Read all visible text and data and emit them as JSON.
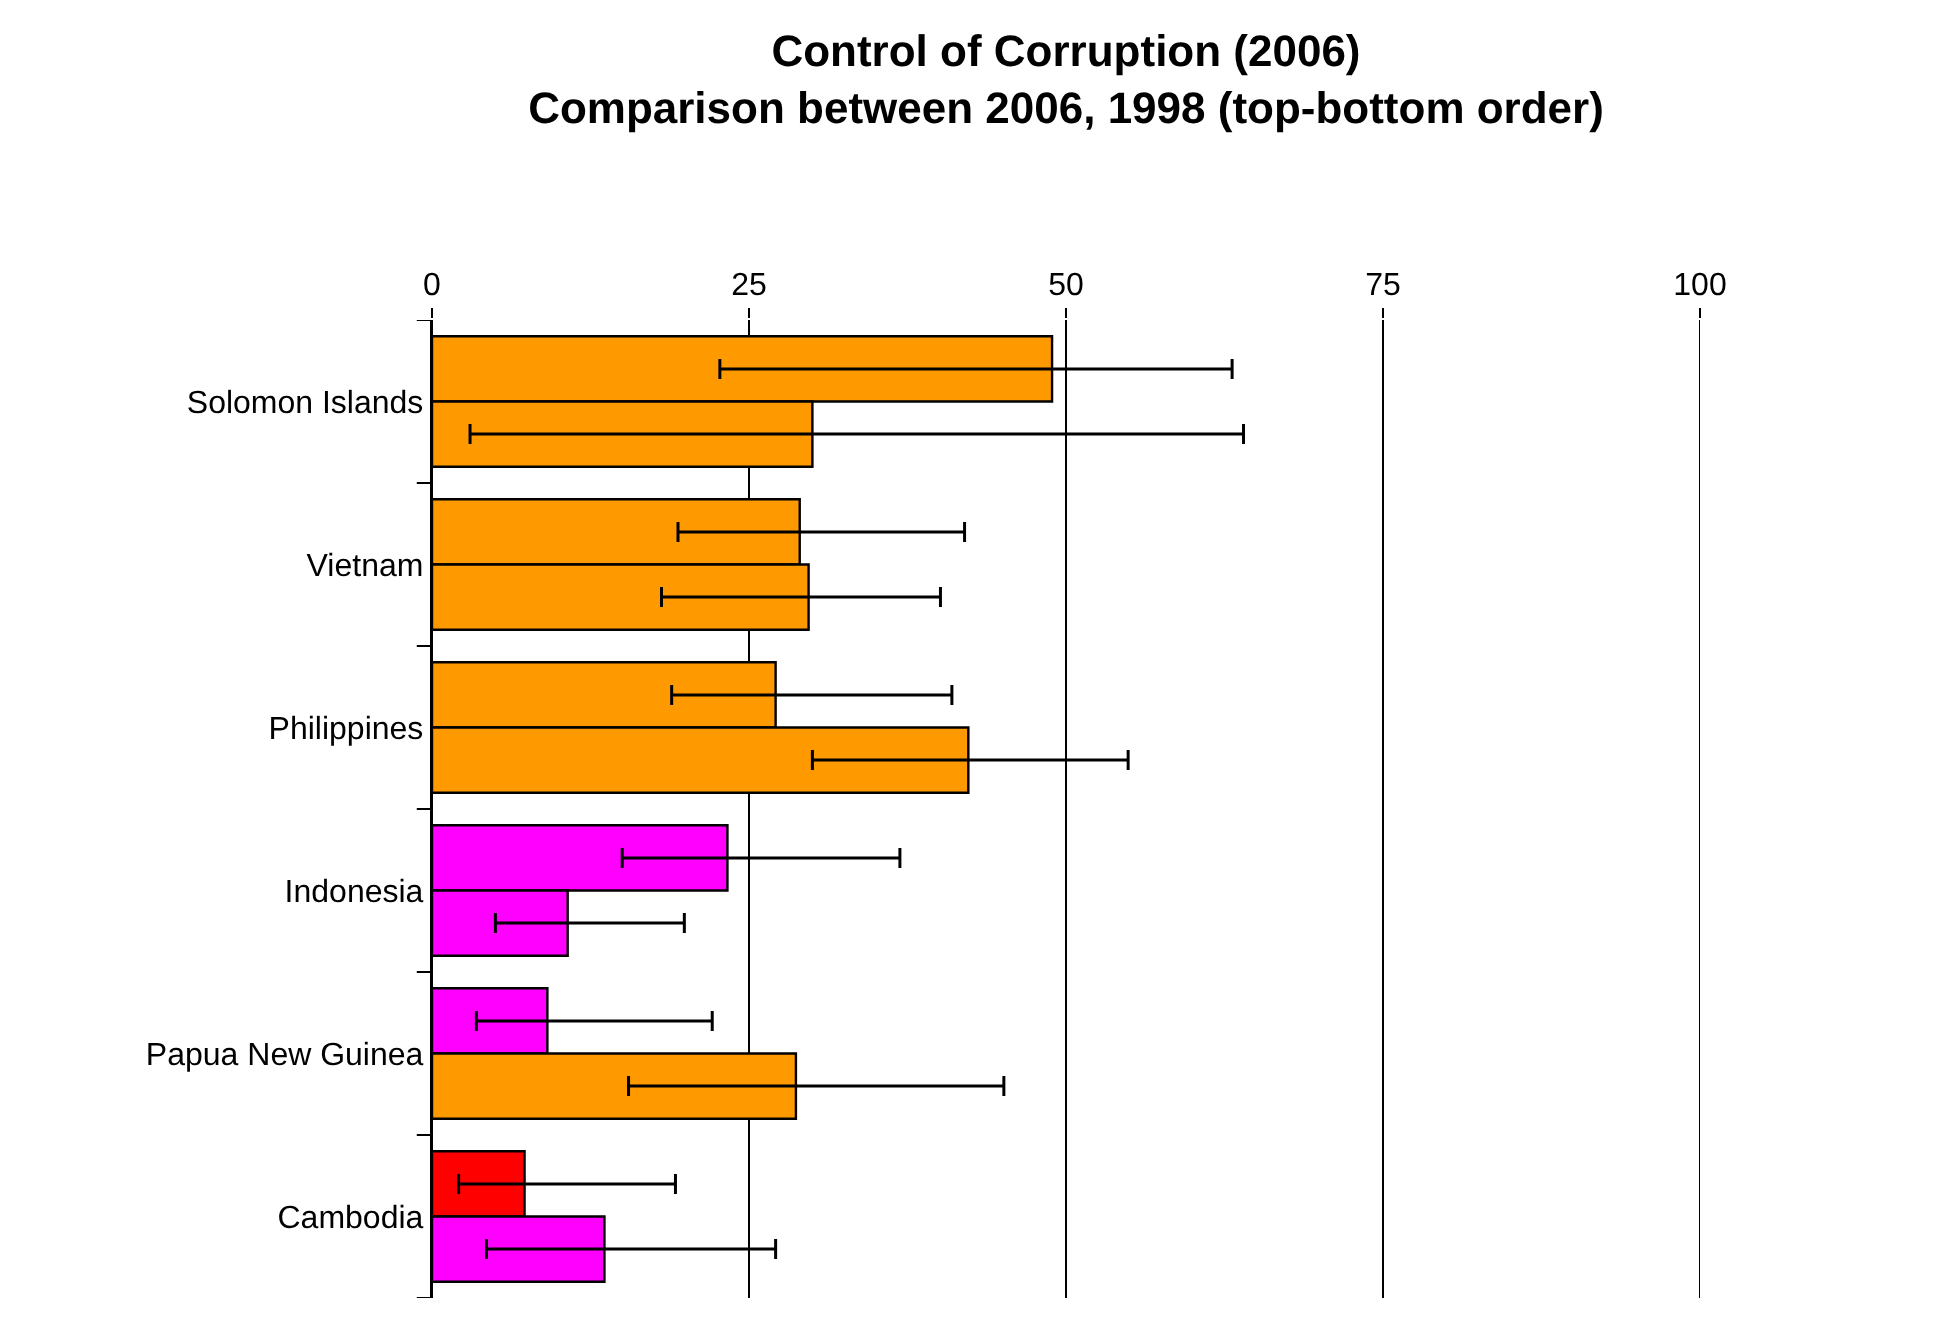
{
  "chart_data": {
    "type": "bar",
    "orientation": "horizontal",
    "title": "Control of Corruption (2006)\nComparison between 2006, 1998 (top-bottom order)",
    "categories": [
      "Solomon Islands",
      "Vietnam",
      "Philippines",
      "Indonesia",
      "Papua New Guinea",
      "Cambodia"
    ],
    "series": [
      {
        "colors": [
          "#ff9900",
          "#ff9900",
          "#ff9900",
          "#ff00ff",
          "#ff00ff",
          "#ff0000"
        ],
        "values": [
          48.9,
          29.0,
          27.1,
          23.3,
          9.1,
          7.3
        ],
        "errors": [
          [
            22.7,
            63.1
          ],
          [
            19.4,
            42.0
          ],
          [
            18.9,
            41.0
          ],
          [
            15.0,
            36.9
          ],
          [
            3.5,
            22.1
          ],
          [
            2.1,
            19.2
          ]
        ]
      },
      {
        "colors": [
          "#ff9900",
          "#ff9900",
          "#ff9900",
          "#ff00ff",
          "#ff9900",
          "#ff00ff"
        ],
        "values": [
          30.0,
          29.7,
          42.3,
          10.7,
          28.7,
          13.6
        ],
        "errors": [
          [
            3.0,
            64.0
          ],
          [
            18.1,
            40.1
          ],
          [
            30.0,
            54.9
          ],
          [
            5.0,
            19.9
          ],
          [
            15.5,
            45.1
          ],
          [
            4.3,
            27.1
          ]
        ]
      }
    ],
    "xlim": [
      0,
      100
    ],
    "xticks": [
      0,
      25,
      50,
      75,
      100
    ],
    "grid": "x"
  }
}
